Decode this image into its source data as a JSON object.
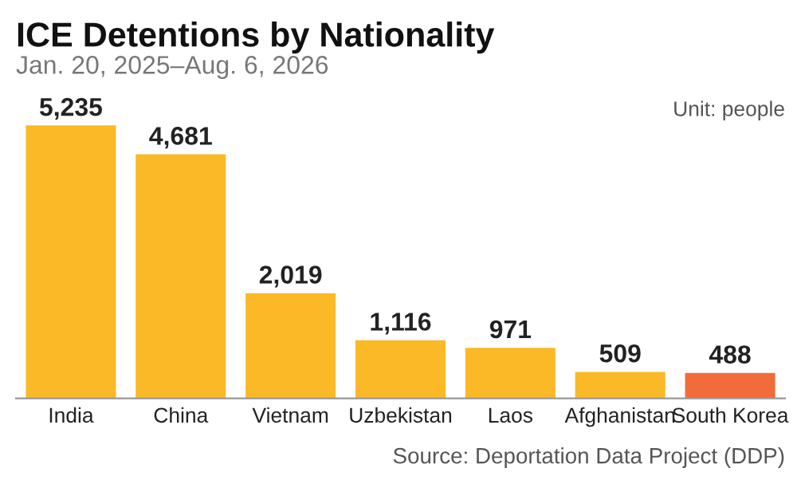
{
  "chart_data": {
    "type": "bar",
    "title": "ICE Detentions by Nationality",
    "subtitle": "Jan. 20, 2025–Aug. 6, 2026",
    "annotations": [
      "Unit: people",
      "Source: Deportation Data Project (DDP)"
    ],
    "categories": [
      "India",
      "China",
      "Vietnam",
      "Uzbekistan",
      "Laos",
      "Afghanistan",
      "South Korea"
    ],
    "values": [
      5235,
      4681,
      2019,
      1116,
      971,
      509,
      488
    ],
    "colors": [
      "#fbb928",
      "#fbb928",
      "#fbb928",
      "#fbb928",
      "#fbb928",
      "#fbb928",
      "#f26b3a"
    ],
    "value_labels": [
      "5,235",
      "4,681",
      "2,019",
      "1,116",
      "971",
      "509",
      "488"
    ],
    "grid": false,
    "legend": false
  }
}
